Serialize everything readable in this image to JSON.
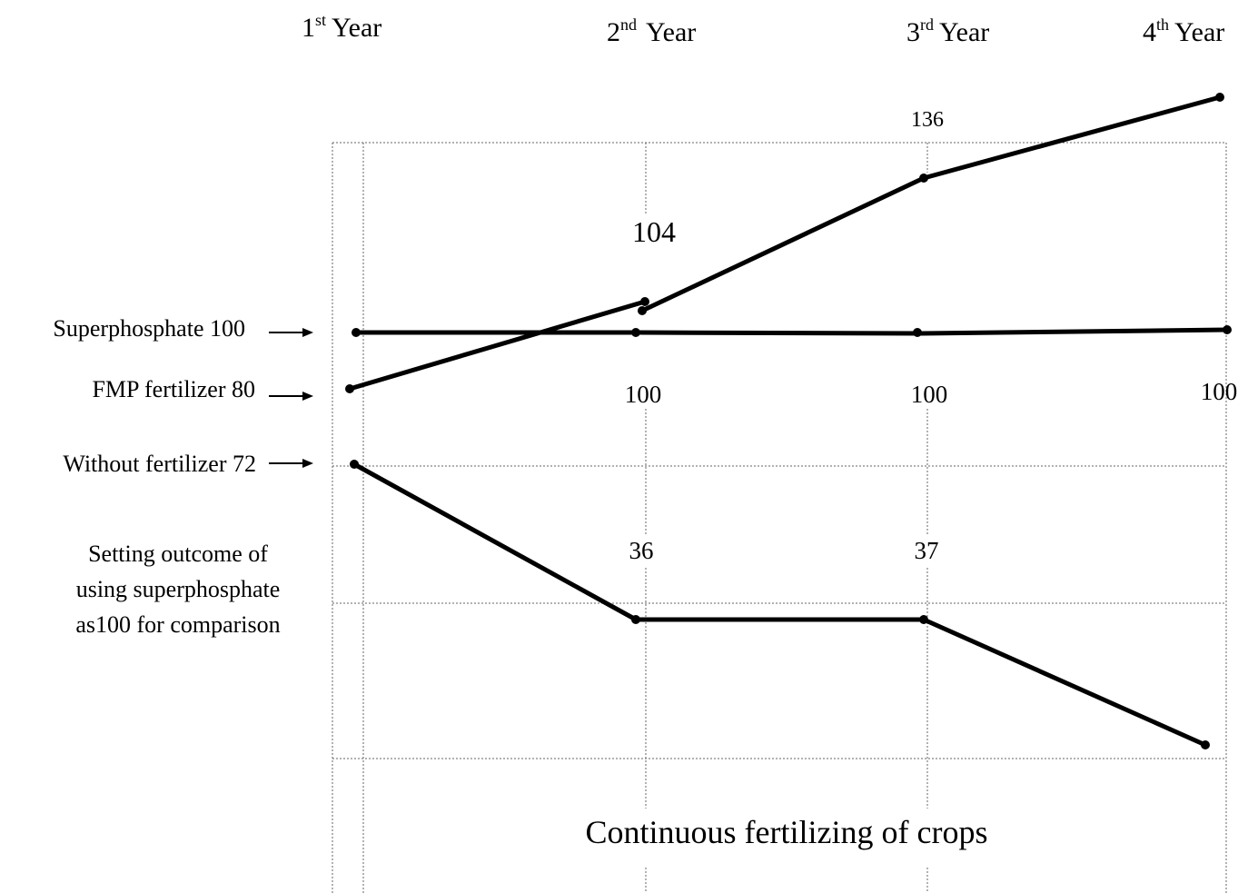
{
  "years": [
    {
      "number": "1",
      "suffix": "st",
      "word": "Year"
    },
    {
      "number": "2",
      "suffix": "nd",
      "word": "Year"
    },
    {
      "number": "3",
      "suffix": "rd",
      "word": "Year"
    },
    {
      "number": "4",
      "suffix": "th",
      "word": "Year"
    }
  ],
  "legend": [
    "Superphosphate 100",
    "FMP fertilizer 80",
    "Without fertilizer 72"
  ],
  "note": [
    "Setting outcome of",
    "using superphosphate",
    "as100 for comparison"
  ],
  "labels": {
    "fmp": [
      "104",
      "136"
    ],
    "superphosphate": [
      "100",
      "100",
      "100"
    ],
    "without": [
      "36",
      "37"
    ]
  },
  "footer": "Continuous fertilizing of crops"
}
